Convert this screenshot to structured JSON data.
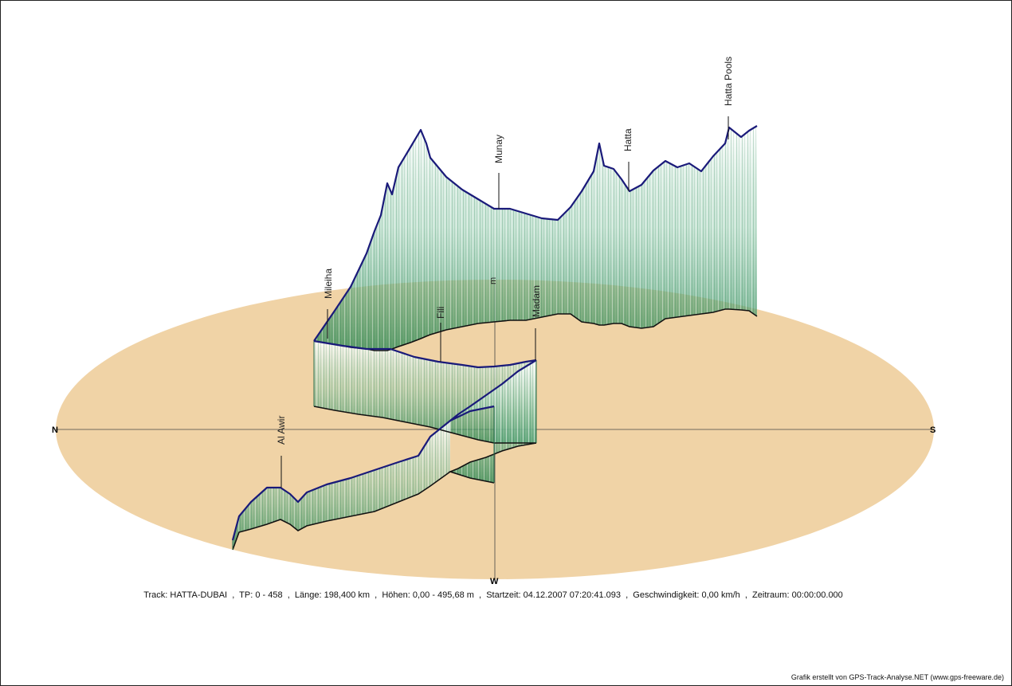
{
  "compass": {
    "north": "N",
    "south": "S",
    "west": "W",
    "center_mark": "m"
  },
  "places": [
    {
      "name": "Hatta Pools"
    },
    {
      "name": "Hatta"
    },
    {
      "name": "Munay"
    },
    {
      "name": "Madam"
    },
    {
      "name": "Fili"
    },
    {
      "name": "Mileiha"
    },
    {
      "name": "Al Awir"
    }
  ],
  "summary": "Track: HATTA-DUBAI  ,  TP: 0 - 458  ,  Länge: 198,400 km  ,  Höhen: 0,00 - 495,68 m  ,  Startzeit: 04.12.2007 07:20:41.093  ,  Geschwindigkeit: 0,00 km/h  ,  Zeitraum: 00:00:00.000",
  "credit": "Grafik erstellt von GPS-Track-Analyse.NET (www.gps-freeware.de)",
  "colors": {
    "ground": "#f0d3a6",
    "profile_line": "#1a1a7a",
    "ground_track": "#111111",
    "curtain_dark": "#2e8b57",
    "curtain_light": "#e8f4ee"
  }
}
